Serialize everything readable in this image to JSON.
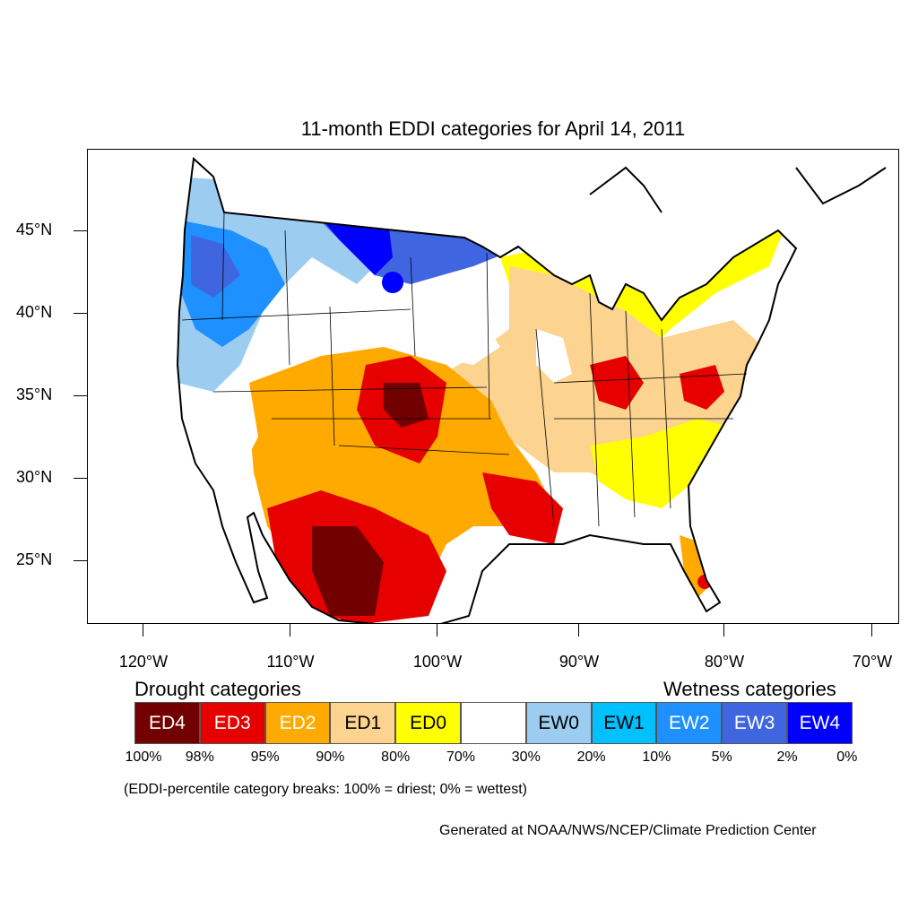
{
  "title": "11-month EDDI categories for April 14, 2011",
  "lat_labels": [
    "45°N",
    "40°N",
    "35°N",
    "30°N",
    "25°N"
  ],
  "lon_labels": [
    "120°W",
    "110°W",
    "100°W",
    "90°W",
    "80°W",
    "70°W"
  ],
  "legend": {
    "drought_heading": "Drought categories",
    "wetness_heading": "Wetness categories",
    "categories": [
      {
        "label": "ED4",
        "color": "#730000",
        "text_color": "#ffffff"
      },
      {
        "label": "ED3",
        "color": "#e60000",
        "text_color": "#ffffff"
      },
      {
        "label": "ED2",
        "color": "#ffaa00",
        "text_color": "#ffffff"
      },
      {
        "label": "ED1",
        "color": "#fcd38f",
        "text_color": "#000000"
      },
      {
        "label": "ED0",
        "color": "#ffff00",
        "text_color": "#000000"
      },
      {
        "label": "",
        "color": "#ffffff",
        "text_color": "#000000"
      },
      {
        "label": "EW0",
        "color": "#9ccdf0",
        "text_color": "#000000"
      },
      {
        "label": "EW1",
        "color": "#00c0ff",
        "text_color": "#000000"
      },
      {
        "label": "EW2",
        "color": "#1e90ff",
        "text_color": "#ffffff"
      },
      {
        "label": "EW3",
        "color": "#3f66e0",
        "text_color": "#ffffff"
      },
      {
        "label": "EW4",
        "color": "#0000ff",
        "text_color": "#ffffff"
      }
    ],
    "percent_breaks": [
      "100%",
      "98%",
      "95%",
      "90%",
      "80%",
      "70%",
      "30%",
      "20%",
      "10%",
      "5%",
      "2%",
      "0%"
    ]
  },
  "note": "(EDDI-percentile category breaks: 100% = driest; 0% = wettest)",
  "credit": "Generated at NOAA/NWS/NCEP/Climate Prediction Center"
}
